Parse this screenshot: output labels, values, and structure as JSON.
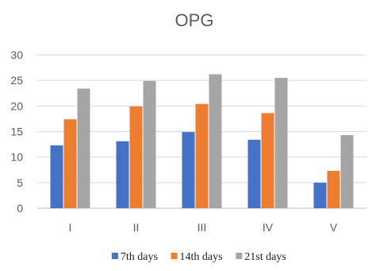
{
  "chart_data": {
    "type": "bar",
    "title": "OPG",
    "xlabel": "",
    "ylabel": "",
    "categories": [
      "I",
      "II",
      "III",
      "IV",
      "V"
    ],
    "series": [
      {
        "name": "7th days",
        "color": "#4472c4",
        "values": [
          12.3,
          13.1,
          14.9,
          13.4,
          5.0
        ]
      },
      {
        "name": "14th days",
        "color": "#ed7d31",
        "values": [
          17.4,
          19.9,
          20.4,
          18.6,
          7.3
        ]
      },
      {
        "name": "21st days",
        "color": "#a5a5a5",
        "values": [
          23.4,
          24.9,
          26.2,
          25.5,
          14.3
        ]
      }
    ],
    "ylim": [
      0,
      30
    ],
    "yticks": [
      0,
      5,
      10,
      15,
      20,
      25,
      30
    ],
    "grid": true,
    "legend_position": "bottom"
  }
}
